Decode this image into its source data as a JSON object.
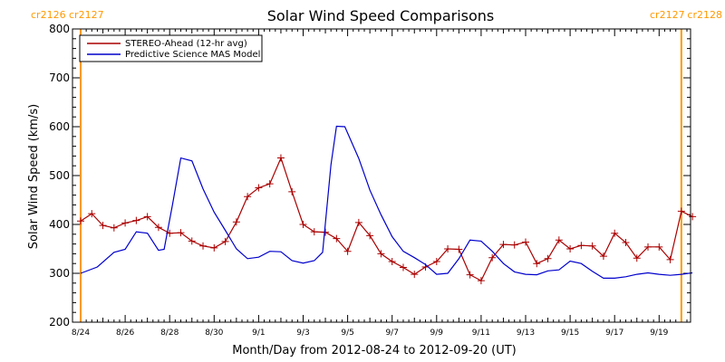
{
  "chart_data": {
    "type": "line",
    "title": "Solar Wind Speed Comparisons",
    "xlabel": "Month/Day from 2012-08-24 to 2012-09-20 (UT)",
    "ylabel": "Solar Wind Speed (km/s)",
    "x_start": "2012-08-24",
    "xlim": [
      "2012-08-24",
      "2012-09-20"
    ],
    "ylim": [
      200,
      800
    ],
    "y_ticks": [
      "200",
      "300",
      "400",
      "500",
      "600",
      "700",
      "800"
    ],
    "x_ticks": [
      {
        "date": "2012-08-24",
        "label": "8/24"
      },
      {
        "date": "2012-08-26",
        "label": "8/26"
      },
      {
        "date": "2012-08-28",
        "label": "8/28"
      },
      {
        "date": "2012-08-30",
        "label": "8/30"
      },
      {
        "date": "2012-09-01",
        "label": "9/1"
      },
      {
        "date": "2012-09-03",
        "label": "9/3"
      },
      {
        "date": "2012-09-05",
        "label": "9/5"
      },
      {
        "date": "2012-09-07",
        "label": "9/7"
      },
      {
        "date": "2012-09-09",
        "label": "9/9"
      },
      {
        "date": "2012-09-11",
        "label": "9/11"
      },
      {
        "date": "2012-09-13",
        "label": "9/13"
      },
      {
        "date": "2012-09-15",
        "label": "9/15"
      },
      {
        "date": "2012-09-17",
        "label": "9/17"
      },
      {
        "date": "2012-09-19",
        "label": "9/19"
      }
    ],
    "carrington": {
      "left": {
        "date": "2012-08-24",
        "labels": [
          "cr2126",
          "cr2127"
        ]
      },
      "right": {
        "date": "2012-09-20",
        "labels": [
          "cr2127",
          "cr2128"
        ]
      }
    },
    "legend_position": "top-left",
    "series": [
      {
        "name": "STEREO-Ahead (12-hr avg)",
        "color": "#aa0000",
        "marker": "plus",
        "points": [
          [
            "2012-08-24 00:00",
            407
          ],
          [
            "2012-08-24 12:00",
            422
          ],
          [
            "2012-08-25 00:00",
            398
          ],
          [
            "2012-08-25 12:00",
            393
          ],
          [
            "2012-08-26 00:00",
            403
          ],
          [
            "2012-08-26 12:00",
            408
          ],
          [
            "2012-08-27 00:00",
            416
          ],
          [
            "2012-08-27 12:00",
            394
          ],
          [
            "2012-08-28 00:00",
            382
          ],
          [
            "2012-08-28 12:00",
            383
          ],
          [
            "2012-08-29 00:00",
            366
          ],
          [
            "2012-08-29 12:00",
            356
          ],
          [
            "2012-08-30 00:00",
            352
          ],
          [
            "2012-08-30 12:00",
            365
          ],
          [
            "2012-08-31 00:00",
            405
          ],
          [
            "2012-08-31 12:00",
            457
          ],
          [
            "2012-09-01 00:00",
            475
          ],
          [
            "2012-09-01 12:00",
            483
          ],
          [
            "2012-09-02 00:00",
            536
          ],
          [
            "2012-09-02 12:00",
            467
          ],
          [
            "2012-09-03 00:00",
            400
          ],
          [
            "2012-09-03 12:00",
            385
          ],
          [
            "2012-09-04 00:00",
            384
          ],
          [
            "2012-09-04 12:00",
            371
          ],
          [
            "2012-09-05 00:00",
            345
          ],
          [
            "2012-09-05 12:00",
            404
          ],
          [
            "2012-09-06 00:00",
            377
          ],
          [
            "2012-09-06 12:00",
            340
          ],
          [
            "2012-09-07 00:00",
            324
          ],
          [
            "2012-09-07 12:00",
            312
          ],
          [
            "2012-09-08 00:00",
            298
          ],
          [
            "2012-09-08 12:00",
            313
          ],
          [
            "2012-09-09 00:00",
            324
          ],
          [
            "2012-09-09 12:00",
            350
          ],
          [
            "2012-09-10 00:00",
            349
          ],
          [
            "2012-09-10 12:00",
            297
          ],
          [
            "2012-09-11 00:00",
            285
          ],
          [
            "2012-09-11 12:00",
            332
          ],
          [
            "2012-09-12 00:00",
            359
          ],
          [
            "2012-09-12 12:00",
            358
          ],
          [
            "2012-09-13 00:00",
            364
          ],
          [
            "2012-09-13 12:00",
            320
          ],
          [
            "2012-09-14 00:00",
            330
          ],
          [
            "2012-09-14 12:00",
            368
          ],
          [
            "2012-09-15 00:00",
            350
          ],
          [
            "2012-09-15 12:00",
            357
          ],
          [
            "2012-09-16 00:00",
            356
          ],
          [
            "2012-09-16 12:00",
            335
          ],
          [
            "2012-09-17 00:00",
            382
          ],
          [
            "2012-09-17 12:00",
            363
          ],
          [
            "2012-09-18 00:00",
            331
          ],
          [
            "2012-09-18 12:00",
            354
          ],
          [
            "2012-09-19 00:00",
            354
          ],
          [
            "2012-09-19 12:00",
            328
          ],
          [
            "2012-09-20 00:00",
            427
          ],
          [
            "2012-09-20 12:00",
            416
          ]
        ]
      },
      {
        "name": "Predictive Science MAS Model",
        "color": "#0000cc",
        "marker": "none",
        "points": [
          [
            "2012-08-24 00:00",
            300
          ],
          [
            "2012-08-24 18:00",
            313
          ],
          [
            "2012-08-25 12:00",
            343
          ],
          [
            "2012-08-26 00:00",
            349
          ],
          [
            "2012-08-26 12:00",
            385
          ],
          [
            "2012-08-27 00:00",
            382
          ],
          [
            "2012-08-27 12:00",
            347
          ],
          [
            "2012-08-27 18:00",
            349
          ],
          [
            "2012-08-28 03:00",
            440
          ],
          [
            "2012-08-28 12:00",
            536
          ],
          [
            "2012-08-29 00:00",
            530
          ],
          [
            "2012-08-29 12:00",
            473
          ],
          [
            "2012-08-30 00:00",
            425
          ],
          [
            "2012-08-30 12:00",
            388
          ],
          [
            "2012-08-31 00:00",
            350
          ],
          [
            "2012-08-31 12:00",
            330
          ],
          [
            "2012-09-01 00:00",
            333
          ],
          [
            "2012-09-01 12:00",
            345
          ],
          [
            "2012-09-02 00:00",
            344
          ],
          [
            "2012-09-02 12:00",
            326
          ],
          [
            "2012-09-03 00:00",
            321
          ],
          [
            "2012-09-03 12:00",
            326
          ],
          [
            "2012-09-03 21:00",
            343
          ],
          [
            "2012-09-04 06:00",
            522
          ],
          [
            "2012-09-04 12:00",
            601
          ],
          [
            "2012-09-04 21:00",
            600
          ],
          [
            "2012-09-05 12:00",
            535
          ],
          [
            "2012-09-06 00:00",
            470
          ],
          [
            "2012-09-06 12:00",
            420
          ],
          [
            "2012-09-07 00:00",
            375
          ],
          [
            "2012-09-07 12:00",
            345
          ],
          [
            "2012-09-08 00:00",
            332
          ],
          [
            "2012-09-08 12:00",
            318
          ],
          [
            "2012-09-09 00:00",
            298
          ],
          [
            "2012-09-09 12:00",
            300
          ],
          [
            "2012-09-10 00:00",
            330
          ],
          [
            "2012-09-10 12:00",
            368
          ],
          [
            "2012-09-11 00:00",
            366
          ],
          [
            "2012-09-11 12:00",
            345
          ],
          [
            "2012-09-12 00:00",
            320
          ],
          [
            "2012-09-12 12:00",
            303
          ],
          [
            "2012-09-13 00:00",
            298
          ],
          [
            "2012-09-13 12:00",
            297
          ],
          [
            "2012-09-14 00:00",
            305
          ],
          [
            "2012-09-14 12:00",
            307
          ],
          [
            "2012-09-15 00:00",
            325
          ],
          [
            "2012-09-15 12:00",
            320
          ],
          [
            "2012-09-16 00:00",
            304
          ],
          [
            "2012-09-16 12:00",
            290
          ],
          [
            "2012-09-17 00:00",
            290
          ],
          [
            "2012-09-17 12:00",
            293
          ],
          [
            "2012-09-18 00:00",
            298
          ],
          [
            "2012-09-18 12:00",
            301
          ],
          [
            "2012-09-19 00:00",
            298
          ],
          [
            "2012-09-19 12:00",
            296
          ],
          [
            "2012-09-20 00:00",
            298
          ],
          [
            "2012-09-20 12:00",
            301
          ]
        ]
      }
    ]
  }
}
